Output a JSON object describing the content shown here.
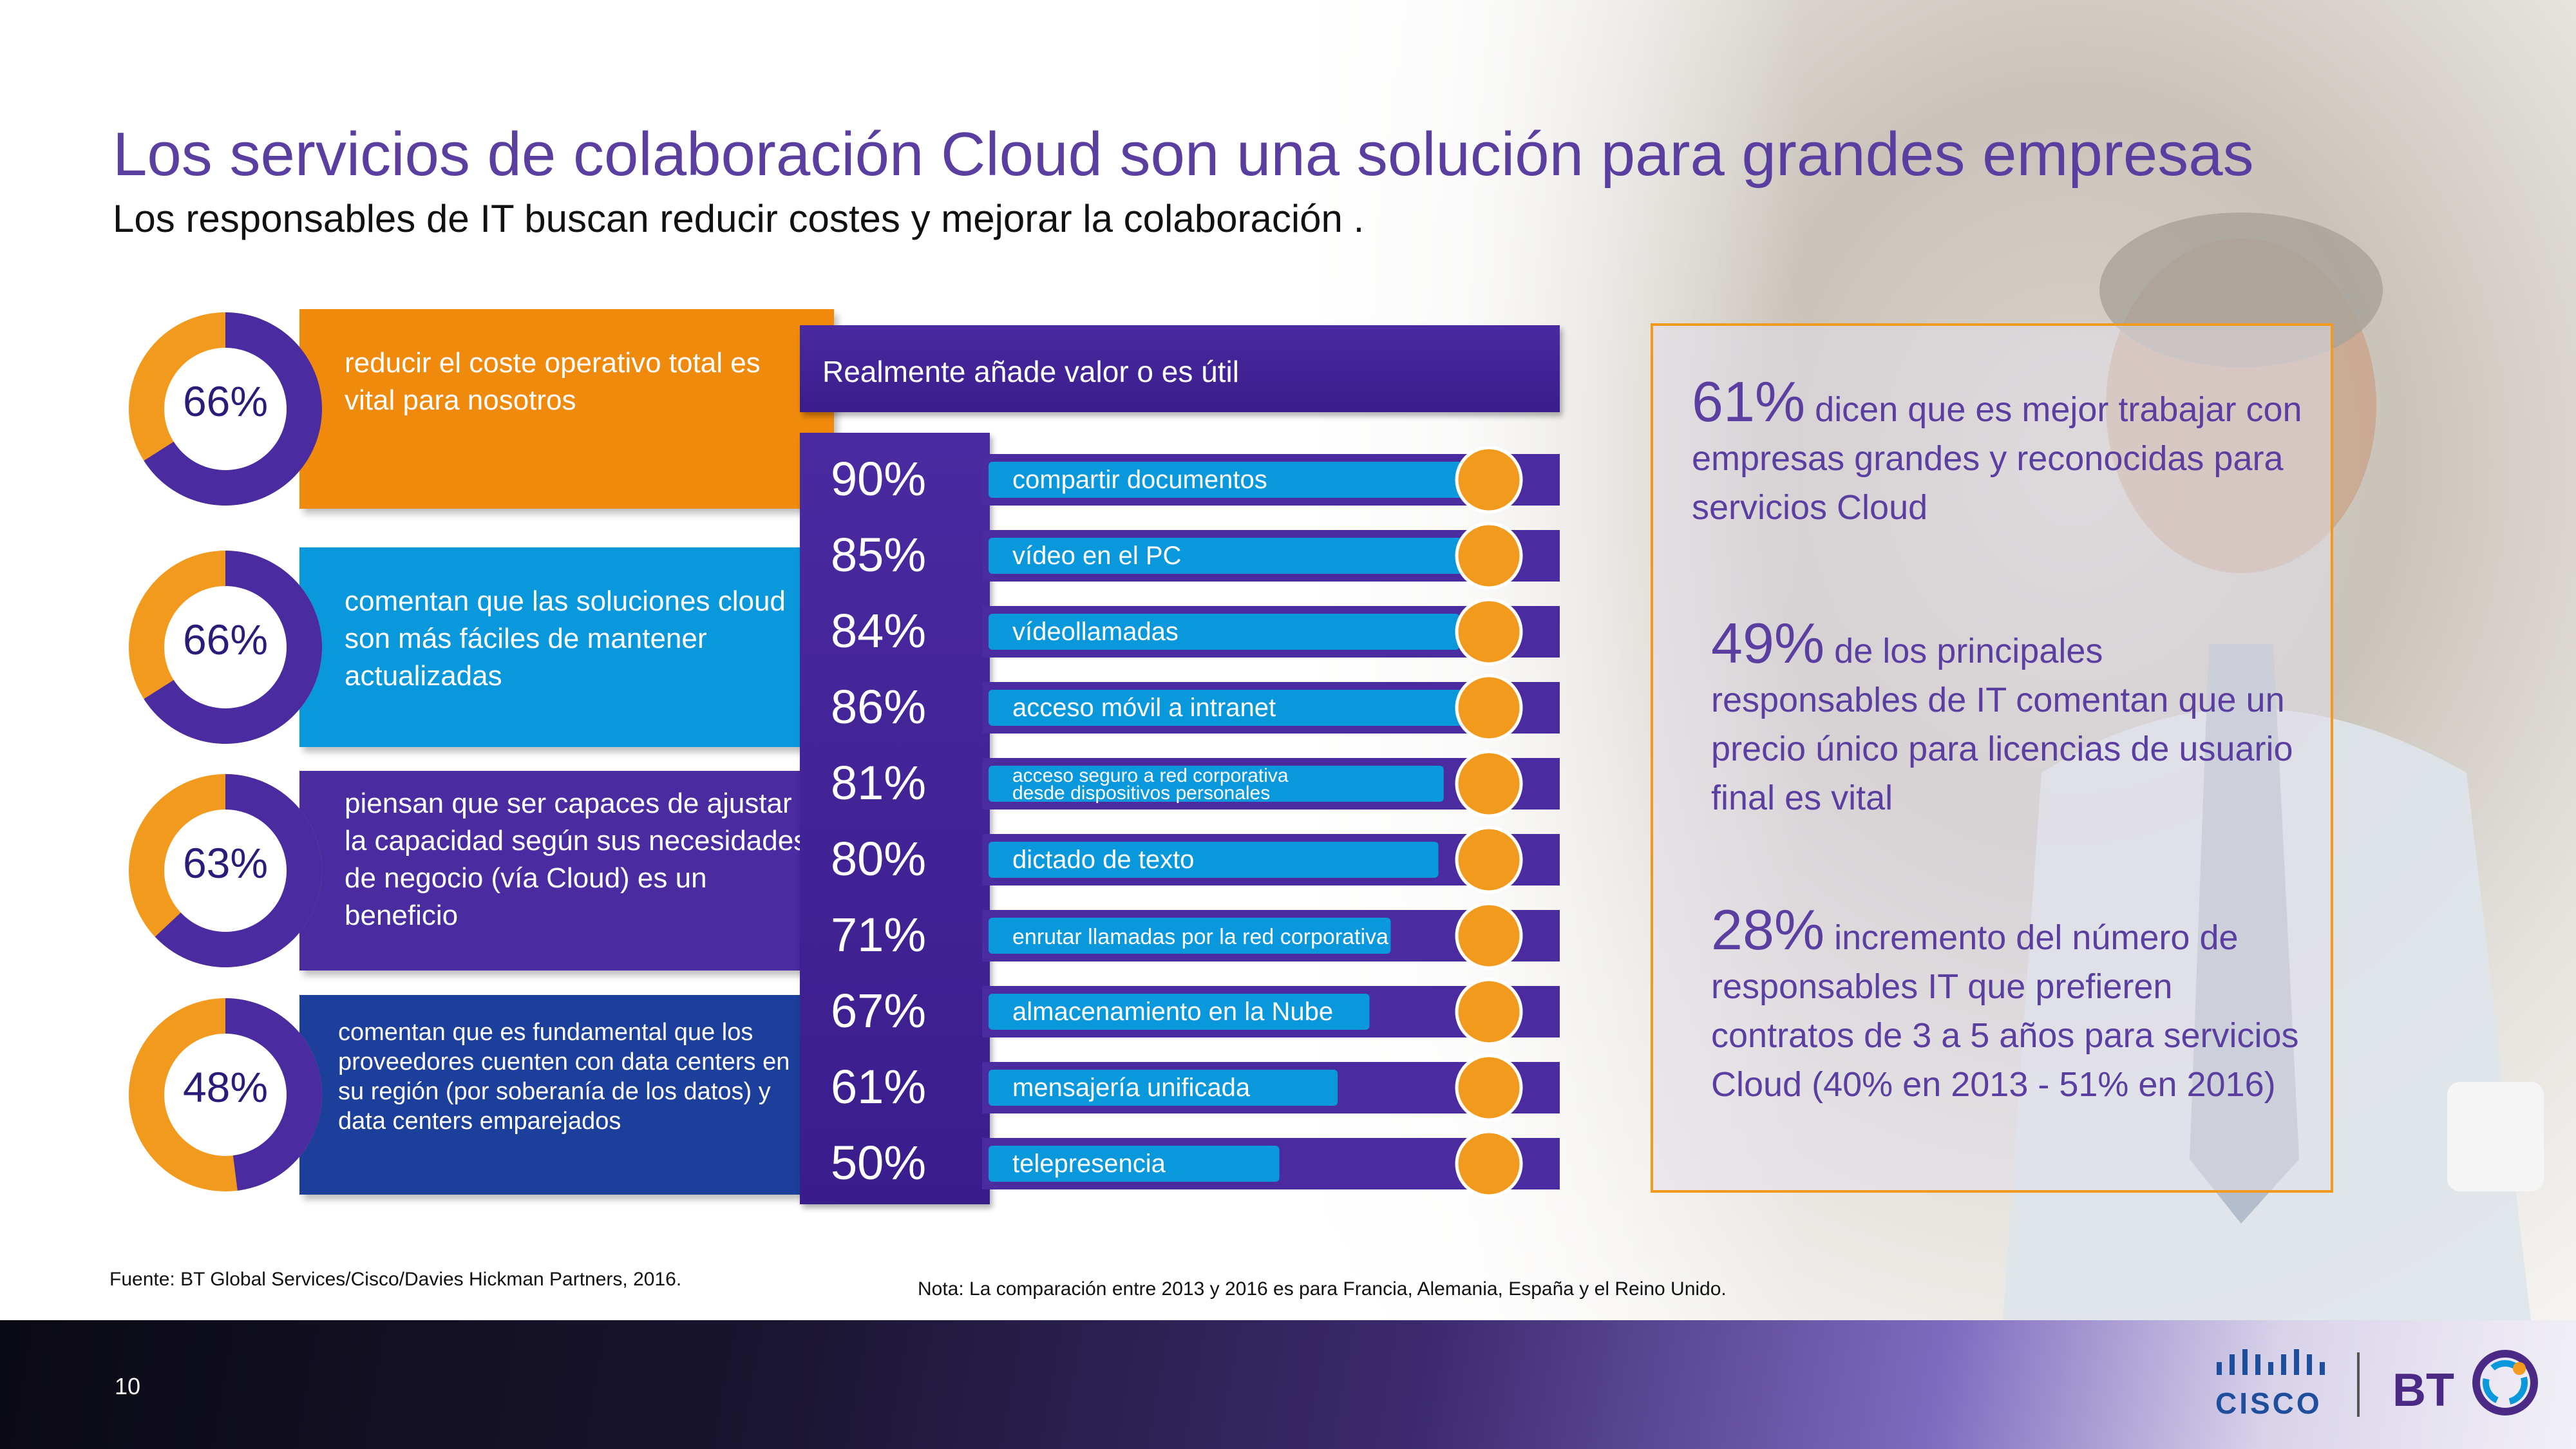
{
  "title": "Los servicios de colaboración Cloud son una solución para grandes empresas",
  "subtitle": "Los responsables de IT buscan reducir costes y mejorar la colaboración .",
  "donuts": [
    {
      "pct_label": "66%",
      "value": 66,
      "text": "reducir el coste operativo total es vital para nosotros",
      "box_color": "#f08a0c"
    },
    {
      "pct_label": "66%",
      "value": 66,
      "text": "comentan que las soluciones cloud son más fáciles de mantener actualizadas",
      "box_color": "#0a98dc"
    },
    {
      "pct_label": "63%",
      "value": 63,
      "text": "piensan que ser capaces de ajustar la capacidad según sus necesidades de negocio (vía Cloud) es un beneficio",
      "box_color": "#4a2ba0"
    },
    {
      "pct_label": "48%",
      "value": 48,
      "text": "comentan que es fundamental que los proveedores cuenten con data centers en su región (por soberanía de los datos) y data centers emparejados",
      "box_color": "#1b3f9a"
    }
  ],
  "donut_colors": {
    "filled": "#4a2ba0",
    "rest": "#f29a1e"
  },
  "chart_data": {
    "type": "bar",
    "title": "Realmente añade valor o es útil",
    "categories": [
      "compartir documentos",
      "vídeo en el PC",
      "vídeollamadas",
      "acceso móvil a intranet",
      "acceso seguro a red corporativa desde dispositivos personales",
      "dictado de texto",
      "enrutar llamadas por la red corporativa",
      "almacenamiento en la Nube",
      "mensajería unificada",
      "telepresencia"
    ],
    "values": [
      90,
      85,
      84,
      86,
      81,
      80,
      71,
      67,
      61,
      50
    ],
    "value_labels": [
      "90%",
      "85%",
      "84%",
      "86%",
      "81%",
      "80%",
      "71%",
      "67%",
      "61%",
      "50%"
    ],
    "colors": {
      "track": "#4a2ba0",
      "bar": "#0a98dc",
      "marker": "#f29a1e"
    }
  },
  "facts": [
    {
      "big": "61%",
      "text": "dicen que es mejor trabajar con empresas grandes y reconocidas para servicios Cloud"
    },
    {
      "big": "49%",
      "text": "de los principales responsables de IT comentan que un precio único para licencias de usuario final es vital"
    },
    {
      "big": "28%",
      "text": "incremento del número de responsables IT que prefieren contratos de 3 a 5 años para servicios Cloud (40% en 2013 - 51% en 2016)"
    }
  ],
  "source_note": "Fuente: BT Global Services/Cisco/Davies Hickman Partners, 2016.",
  "compare_note": "Nota: La comparación entre 2013 y 2016 es para Francia, Alemania, España y el Reino Unido.",
  "page_number": "10",
  "logos": {
    "cisco": "CISCO",
    "bt": "BT"
  }
}
